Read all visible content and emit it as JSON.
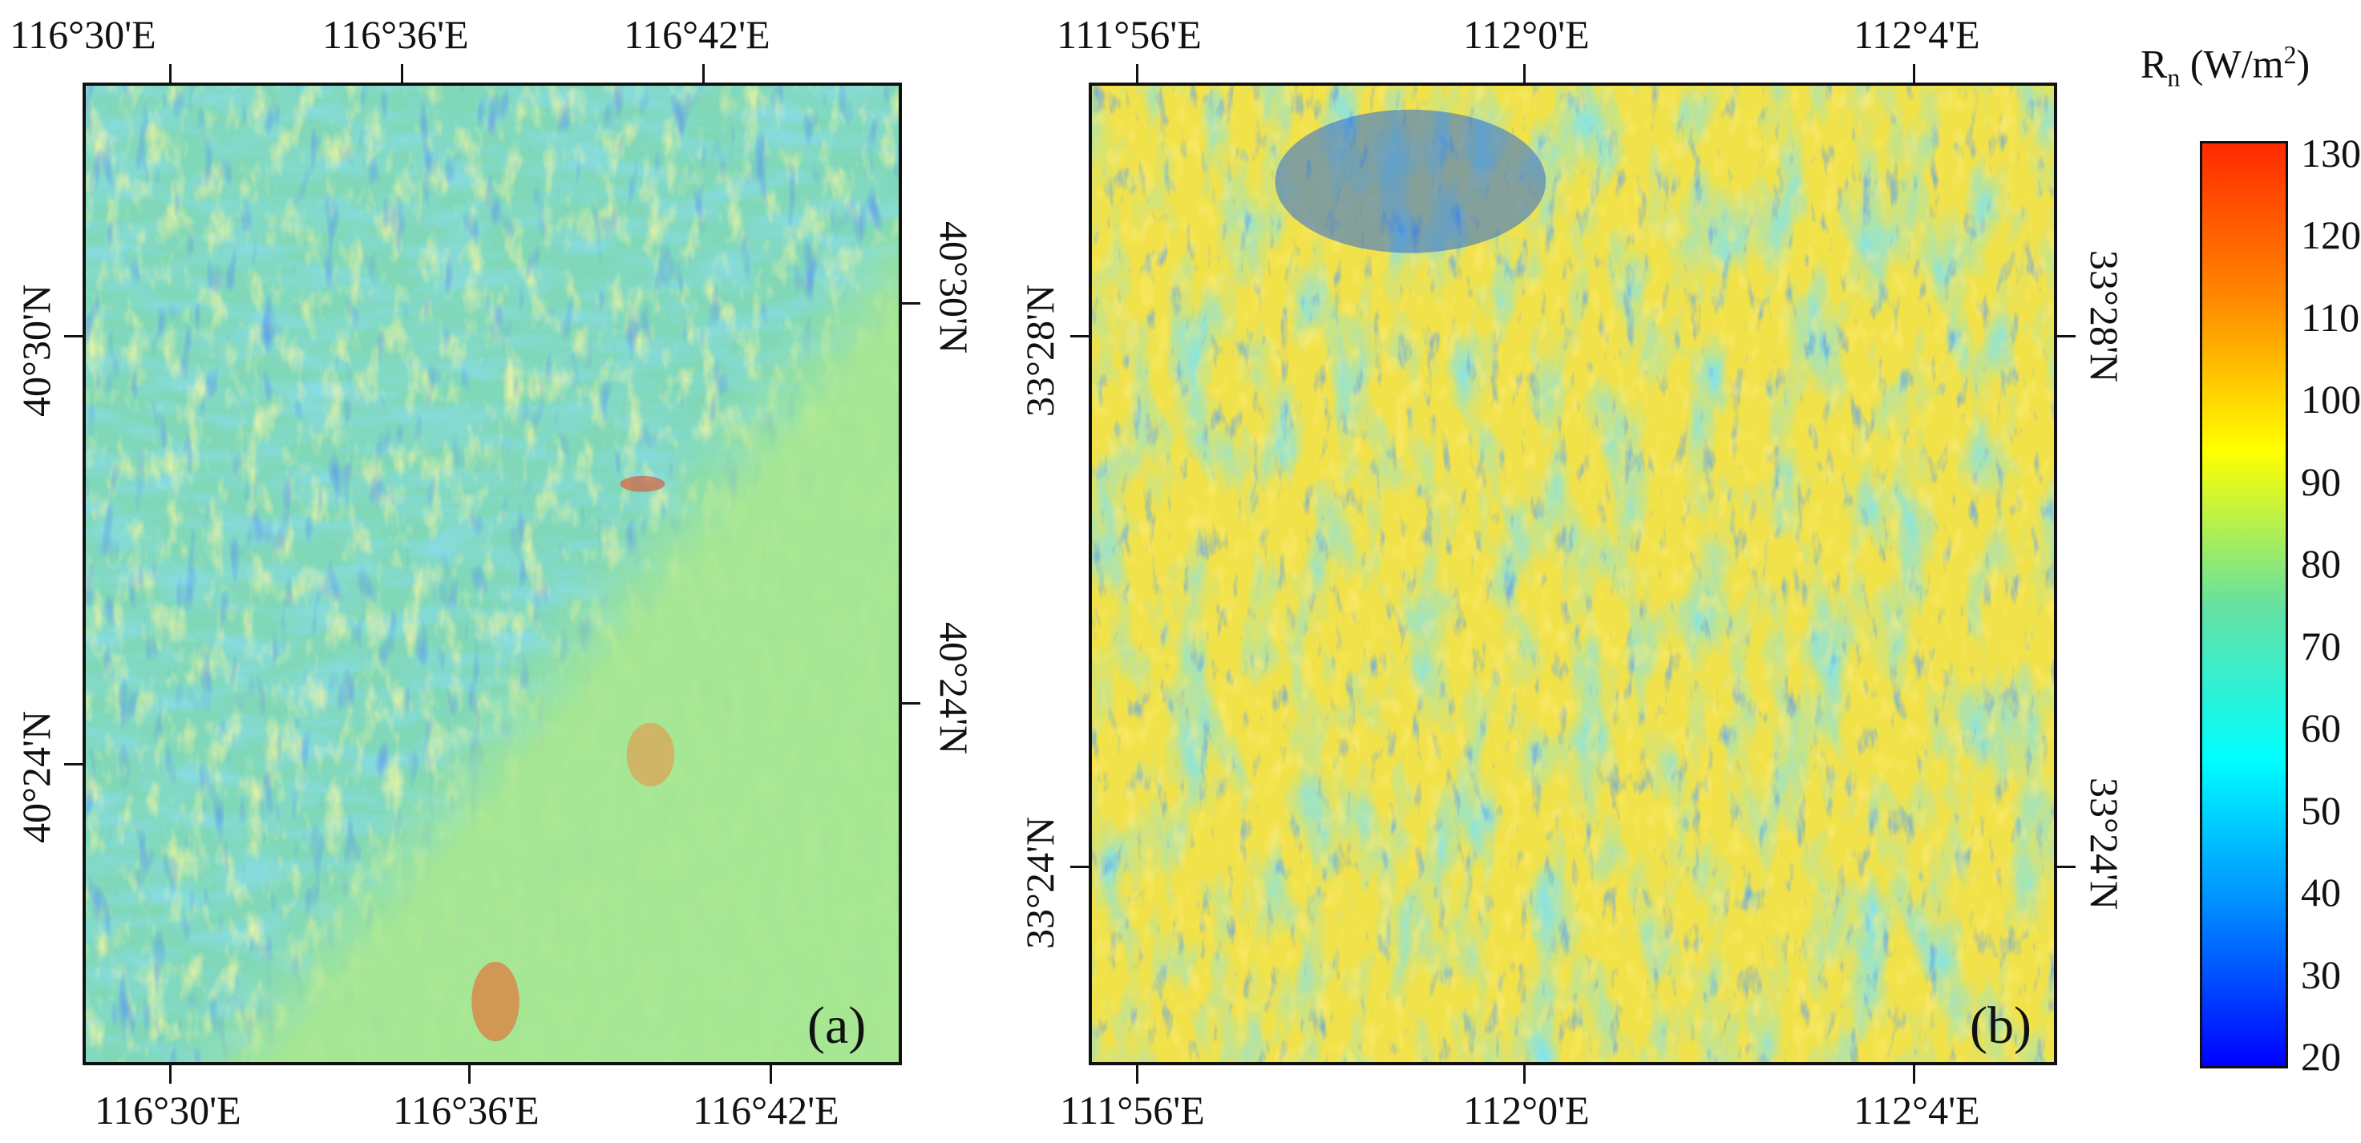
{
  "panel_a": {
    "tag": "(a)",
    "top_ticks": [
      "116°30'E",
      "116°36'E",
      "116°42'E"
    ],
    "bottom_ticks": [
      "116°30'E",
      "116°36'E",
      "116°42'E"
    ],
    "left_ticks": [
      "40°30'N",
      "40°24'N"
    ],
    "right_ticks": [
      "40°30'N",
      "40°24'N"
    ]
  },
  "panel_b": {
    "tag": "(b)",
    "top_ticks": [
      "111°56'E",
      "112°0'E",
      "112°4'E"
    ],
    "bottom_ticks": [
      "111°56'E",
      "112°0'E",
      "112°4'E"
    ],
    "left_ticks": [
      "33°28'N",
      "33°24'N"
    ],
    "right_ticks": [
      "33°28'N",
      "33°24'N"
    ]
  },
  "colorbar": {
    "title_main": "R",
    "title_sub": "n",
    "title_unit_pre": " (W/m",
    "title_sup": "2",
    "title_unit_post": ")",
    "labels": [
      "130",
      "120",
      "110",
      "100",
      "90",
      "80",
      "70",
      "60",
      "50",
      "40",
      "30",
      "20"
    ],
    "min": 20,
    "max": 130,
    "colors": [
      "#0000ff",
      "#0088ff",
      "#00ffff",
      "#66e0a0",
      "#ffff00",
      "#ff8800",
      "#ff2a00"
    ]
  }
}
